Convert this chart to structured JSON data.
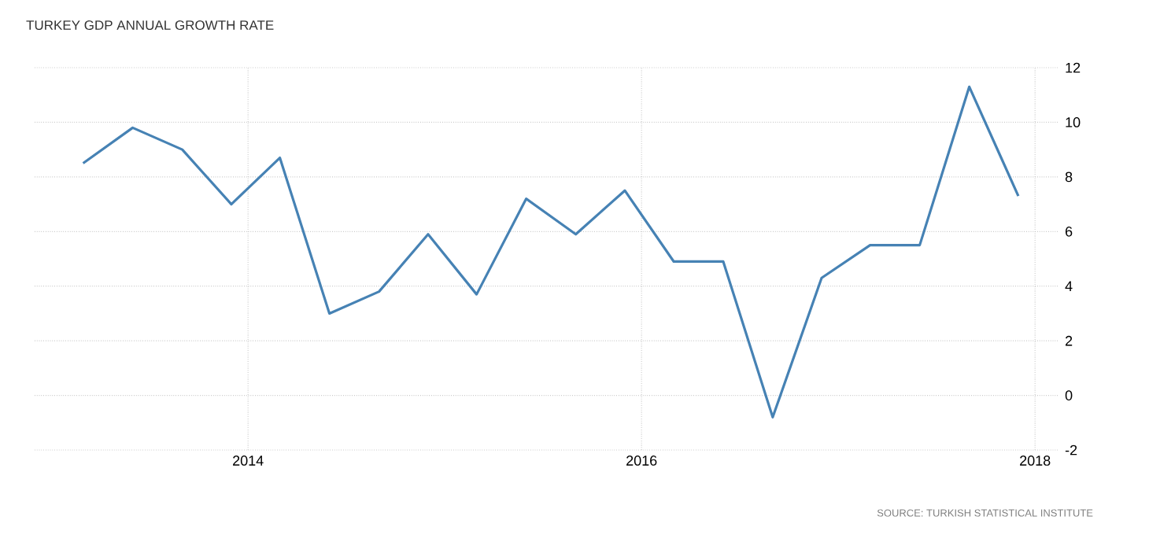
{
  "chart_data": {
    "type": "line",
    "title": "TURKEY GDP ANNUAL GROWTH RATE",
    "x": [
      "2013-03",
      "2013-06",
      "2013-09",
      "2013-12",
      "2014-03",
      "2014-06",
      "2014-09",
      "2014-12",
      "2015-03",
      "2015-06",
      "2015-09",
      "2015-12",
      "2016-03",
      "2016-06",
      "2016-09",
      "2016-12",
      "2017-03",
      "2017-06",
      "2017-09",
      "2017-12"
    ],
    "series": [
      {
        "color": "#4682b4",
        "values": [
          8.5,
          9.8,
          9.0,
          7.0,
          8.7,
          3.0,
          3.8,
          5.9,
          3.7,
          7.2,
          5.9,
          7.5,
          4.9,
          4.9,
          -0.8,
          4.3,
          5.5,
          5.5,
          11.3,
          7.3
        ]
      }
    ],
    "xlim": [
      "2012-12",
      "2018-02-15"
    ],
    "xticks": [
      "2014",
      "2016",
      "2018"
    ],
    "ylim": [
      -2,
      12
    ],
    "yticks": [
      -2,
      0,
      2,
      4,
      6,
      8,
      10,
      12
    ],
    "grid": true,
    "annotations": [
      "SOURCE: TURKISH STATISTICAL INSTITUTE"
    ]
  }
}
